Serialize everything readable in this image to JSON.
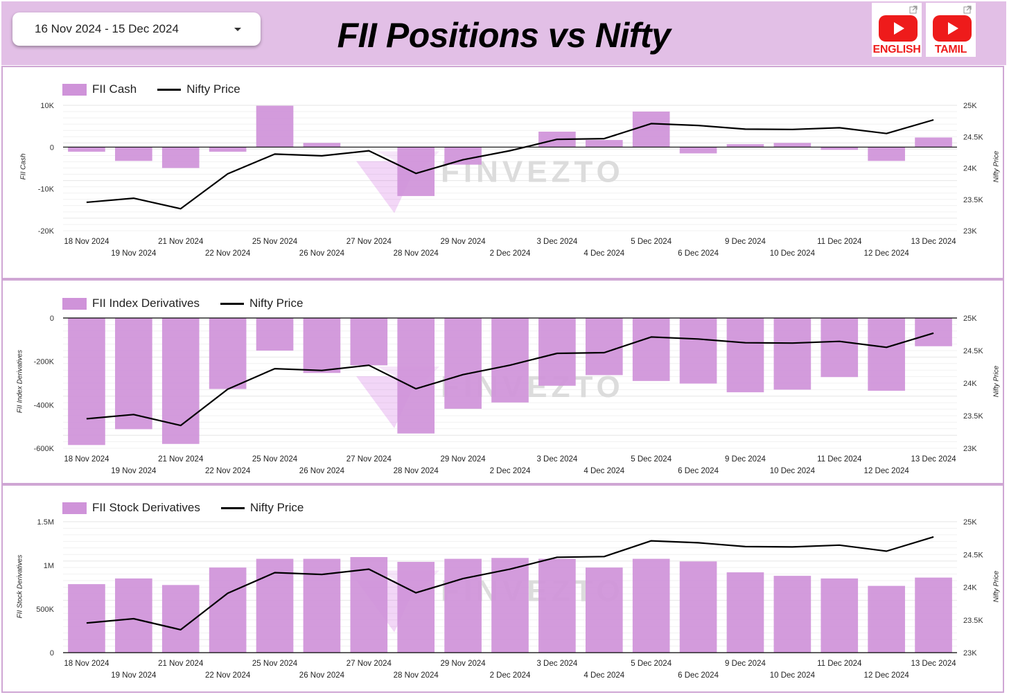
{
  "header": {
    "date_range": "16 Nov 2024 - 15 Dec 2024",
    "title": "FII Positions vs Nifty",
    "youtube_english_label": "ENGLISH",
    "youtube_tamil_label": "TAMIL"
  },
  "watermark": "FINVEZTO",
  "colors": {
    "bar": "#cf93d9",
    "line": "#000000",
    "header_bg": "#e2bfe6",
    "youtube_red": "#ee1b1b"
  },
  "chart_data": [
    {
      "type": "bar",
      "categories": [
        "18 Nov 2024",
        "19 Nov 2024",
        "21 Nov 2024",
        "22 Nov 2024",
        "25 Nov 2024",
        "26 Nov 2024",
        "27 Nov 2024",
        "28 Nov 2024",
        "29 Nov 2024",
        "2 Dec 2024",
        "3 Dec 2024",
        "4 Dec 2024",
        "5 Dec 2024",
        "6 Dec 2024",
        "9 Dec 2024",
        "10 Dec 2024",
        "11 Dec 2024",
        "12 Dec 2024",
        "13 Dec 2024"
      ],
      "series": [
        {
          "name": "FII Cash",
          "type": "bar",
          "axis": "left",
          "values": [
            -1100,
            -3300,
            -5000,
            -1100,
            9900,
            1000,
            0,
            -11700,
            -4200,
            0,
            3700,
            1700,
            8500,
            -1500,
            700,
            1000,
            -650,
            -3300,
            2300
          ]
        },
        {
          "name": "Nifty Price",
          "type": "line",
          "axis": "right",
          "values": [
            23453,
            23518,
            23350,
            23907,
            24222,
            24195,
            24275,
            23914,
            24131,
            24276,
            24457,
            24468,
            24708,
            24678,
            24620,
            24615,
            24642,
            24550,
            24768
          ]
        }
      ],
      "ylabel": "FII Cash",
      "y2label": "Nifty Price",
      "ylim": [
        -20000,
        10000
      ],
      "y2lim": [
        23000,
        25000
      ],
      "yticks": [
        "10K",
        "0",
        "-10K",
        "-20K"
      ],
      "y2ticks": [
        "25K",
        "24.5K",
        "24K",
        "23.5K",
        "23K"
      ],
      "legend": "top-left",
      "grid": true
    },
    {
      "type": "bar",
      "categories": [
        "18 Nov 2024",
        "19 Nov 2024",
        "21 Nov 2024",
        "22 Nov 2024",
        "25 Nov 2024",
        "26 Nov 2024",
        "27 Nov 2024",
        "28 Nov 2024",
        "29 Nov 2024",
        "2 Dec 2024",
        "3 Dec 2024",
        "4 Dec 2024",
        "5 Dec 2024",
        "6 Dec 2024",
        "9 Dec 2024",
        "10 Dec 2024",
        "11 Dec 2024",
        "12 Dec 2024",
        "13 Dec 2024"
      ],
      "series": [
        {
          "name": "FII Index Derivatives",
          "type": "bar",
          "axis": "left",
          "values": [
            -585000,
            -512000,
            -580000,
            -327000,
            -150000,
            -253000,
            -218000,
            -532000,
            -418000,
            -389000,
            -312000,
            -263000,
            -290000,
            -302000,
            -342000,
            -330000,
            -272000,
            -335000,
            -130000
          ]
        },
        {
          "name": "Nifty Price",
          "type": "line",
          "axis": "right",
          "values": [
            23453,
            23518,
            23350,
            23907,
            24222,
            24195,
            24275,
            23914,
            24131,
            24276,
            24457,
            24468,
            24708,
            24678,
            24620,
            24615,
            24642,
            24550,
            24768
          ]
        }
      ],
      "ylabel": "FII Index Derivatives",
      "y2label": "Nifty Price",
      "ylim": [
        -600000,
        0
      ],
      "y2lim": [
        23000,
        25000
      ],
      "yticks": [
        "0",
        "-200K",
        "-400K",
        "-600K"
      ],
      "y2ticks": [
        "25K",
        "24.5K",
        "24K",
        "23.5K",
        "23K"
      ],
      "legend": "top-left",
      "grid": true
    },
    {
      "type": "bar",
      "categories": [
        "18 Nov 2024",
        "19 Nov 2024",
        "21 Nov 2024",
        "22 Nov 2024",
        "25 Nov 2024",
        "26 Nov 2024",
        "27 Nov 2024",
        "28 Nov 2024",
        "29 Nov 2024",
        "2 Dec 2024",
        "3 Dec 2024",
        "4 Dec 2024",
        "5 Dec 2024",
        "6 Dec 2024",
        "9 Dec 2024",
        "10 Dec 2024",
        "11 Dec 2024",
        "12 Dec 2024",
        "13 Dec 2024"
      ],
      "series": [
        {
          "name": "FII Stock Derivatives",
          "type": "bar",
          "axis": "left",
          "values": [
            785000,
            850000,
            775000,
            975000,
            1075000,
            1075000,
            1095000,
            1040000,
            1075000,
            1085000,
            1075000,
            975000,
            1075000,
            1045000,
            920000,
            880000,
            850000,
            765000,
            860000
          ]
        },
        {
          "name": "Nifty Price",
          "type": "line",
          "axis": "right",
          "values": [
            23453,
            23518,
            23350,
            23907,
            24222,
            24195,
            24275,
            23914,
            24131,
            24276,
            24457,
            24468,
            24708,
            24678,
            24620,
            24615,
            24642,
            24550,
            24768
          ]
        }
      ],
      "ylabel": "FII Stock Derivatives",
      "y2label": "Nifty Price",
      "ylim": [
        0,
        1500000
      ],
      "y2lim": [
        23000,
        25000
      ],
      "yticks": [
        "1.5M",
        "1M",
        "500K",
        "0"
      ],
      "y2ticks": [
        "25K",
        "24.5K",
        "24K",
        "23.5K",
        "23K"
      ],
      "legend": "top-left",
      "grid": true
    }
  ]
}
